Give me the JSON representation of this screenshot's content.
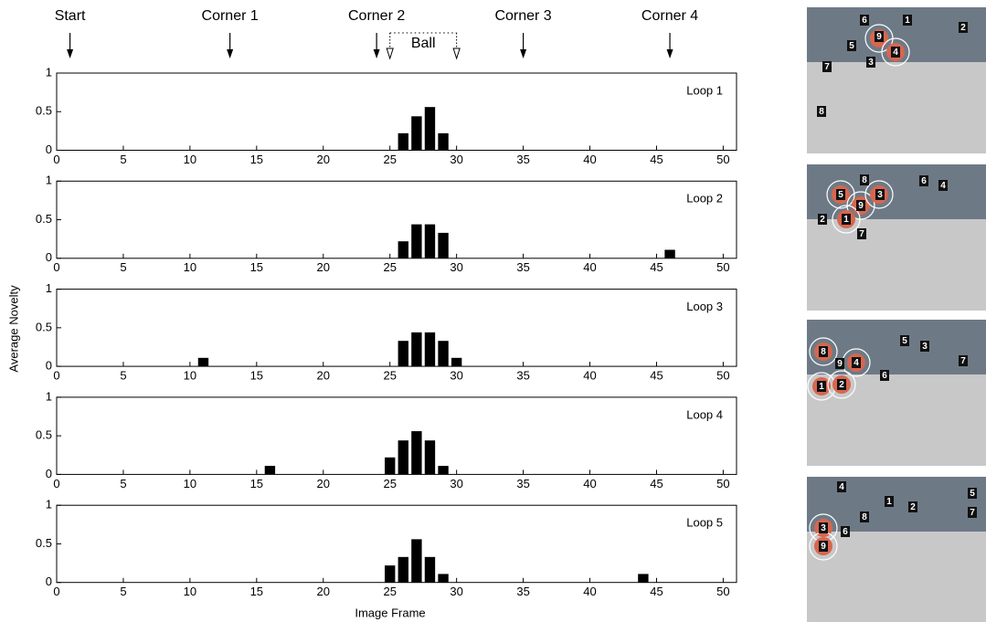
{
  "chart_data": [
    {
      "type": "bar",
      "annotation": "Loop 1",
      "x": [
        26,
        27,
        28,
        29
      ],
      "values": [
        0.22,
        0.44,
        0.56,
        0.22
      ],
      "color": "#000000",
      "xlim": [
        0,
        51
      ],
      "ylim": [
        0,
        1
      ],
      "xticks": [
        0,
        5,
        10,
        15,
        20,
        25,
        30,
        35,
        40,
        45,
        50
      ],
      "yticks": [
        0,
        0.5,
        1
      ]
    },
    {
      "type": "bar",
      "annotation": "Loop 2",
      "x": [
        26,
        27,
        28,
        29,
        46
      ],
      "values": [
        0.22,
        0.44,
        0.44,
        0.33,
        0.11
      ],
      "color": "#000000",
      "xlim": [
        0,
        51
      ],
      "ylim": [
        0,
        1
      ],
      "xticks": [
        0,
        5,
        10,
        15,
        20,
        25,
        30,
        35,
        40,
        45,
        50
      ],
      "yticks": [
        0,
        0.5,
        1
      ]
    },
    {
      "type": "bar",
      "annotation": "Loop 3",
      "x": [
        11,
        26,
        27,
        28,
        29,
        30
      ],
      "values": [
        0.11,
        0.33,
        0.44,
        0.44,
        0.33,
        0.11
      ],
      "color": "#000000",
      "xlim": [
        0,
        51
      ],
      "ylim": [
        0,
        1
      ],
      "xticks": [
        0,
        5,
        10,
        15,
        20,
        25,
        30,
        35,
        40,
        45,
        50
      ],
      "yticks": [
        0,
        0.5,
        1
      ]
    },
    {
      "type": "bar",
      "annotation": "Loop 4",
      "x": [
        16,
        25,
        26,
        27,
        28,
        29
      ],
      "values": [
        0.11,
        0.22,
        0.44,
        0.56,
        0.44,
        0.11
      ],
      "color": "#000000",
      "xlim": [
        0,
        51
      ],
      "ylim": [
        0,
        1
      ],
      "xticks": [
        0,
        5,
        10,
        15,
        20,
        25,
        30,
        35,
        40,
        45,
        50
      ],
      "yticks": [
        0,
        0.5,
        1
      ]
    },
    {
      "type": "bar",
      "annotation": "Loop 5",
      "x": [
        25,
        26,
        27,
        28,
        29,
        44
      ],
      "values": [
        0.22,
        0.33,
        0.56,
        0.33,
        0.11,
        0.11
      ],
      "color": "#000000",
      "xlim": [
        0,
        51
      ],
      "ylim": [
        0,
        1
      ],
      "xticks": [
        0,
        5,
        10,
        15,
        20,
        25,
        30,
        35,
        40,
        45,
        50
      ],
      "yticks": [
        0,
        0.5,
        1
      ]
    }
  ],
  "y_label": "Average Novelty",
  "x_label": "Image Frame",
  "events": [
    {
      "label": "Start",
      "frame": 1
    },
    {
      "label": "Corner 1",
      "frame": 13
    },
    {
      "label": "Corner 2",
      "frame": 24
    },
    {
      "label": "Corner 3",
      "frame": 35
    },
    {
      "label": "Corner 4",
      "frame": 46
    }
  ],
  "ball": {
    "label": "Ball",
    "frames": [
      25,
      30
    ]
  },
  "photos": [
    {
      "labels": [
        "6",
        "1",
        "2",
        "9",
        "5",
        "4",
        "3",
        "7",
        "8"
      ]
    },
    {
      "labels": [
        "8",
        "5",
        "9",
        "3",
        "1",
        "2",
        "7",
        "6",
        "4"
      ]
    },
    {
      "labels": [
        "5",
        "3",
        "8",
        "9",
        "4",
        "6",
        "1",
        "2",
        "7"
      ]
    },
    {
      "labels": [
        "5",
        "4",
        "1",
        "2",
        "7",
        "3",
        "6",
        "8",
        "9"
      ]
    }
  ]
}
